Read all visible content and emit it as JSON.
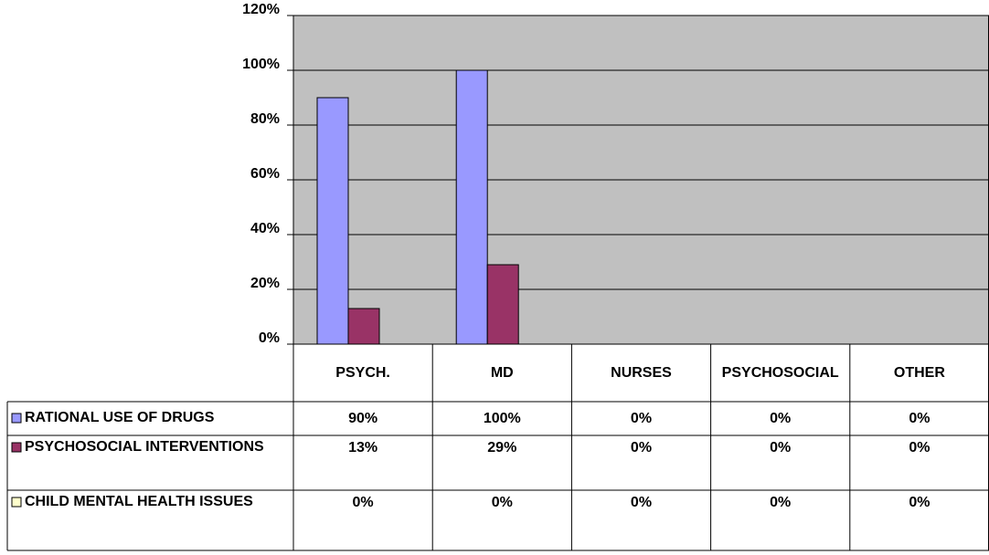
{
  "chart_data": {
    "type": "bar",
    "categories": [
      "PSYCH.",
      "MD",
      "NURSES",
      "PSYCHOSOCIAL",
      "OTHER"
    ],
    "series": [
      {
        "name": "RATIONAL USE OF DRUGS",
        "color": "#9999ff",
        "values": [
          90,
          100,
          0,
          0,
          0
        ],
        "value_labels": [
          "90%",
          "100%",
          "0%",
          "0%",
          "0%"
        ]
      },
      {
        "name": "PSYCHOSOCIAL INTERVENTIONS",
        "color": "#993366",
        "values": [
          13,
          29,
          0,
          0,
          0
        ],
        "value_labels": [
          "13%",
          "29%",
          "0%",
          "0%",
          "0%"
        ]
      },
      {
        "name": "CHILD MENTAL HEALTH ISSUES",
        "color": "#ffffcc",
        "values": [
          0,
          0,
          0,
          0,
          0
        ],
        "value_labels": [
          "0%",
          "0%",
          "0%",
          "0%",
          "0%"
        ]
      }
    ],
    "ylim": [
      0,
      120
    ],
    "yticks": [
      {
        "value": 0,
        "label": "0%"
      },
      {
        "value": 20,
        "label": "20%"
      },
      {
        "value": 40,
        "label": "40%"
      },
      {
        "value": 60,
        "label": "60%"
      },
      {
        "value": 80,
        "label": "80%"
      },
      {
        "value": 100,
        "label": "100%"
      },
      {
        "value": 120,
        "label": "120%"
      }
    ],
    "grid": true,
    "plot_background": "#c0c0c0",
    "data_table": true
  }
}
